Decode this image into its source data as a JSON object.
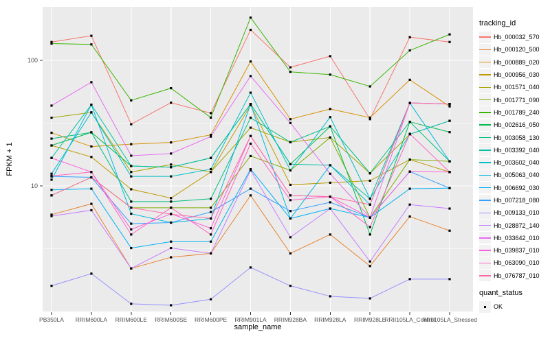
{
  "chart_data": {
    "type": "line",
    "title": "",
    "xlabel": "sample_name",
    "ylabel": "FPKM + 1",
    "y_scale": "log10",
    "ylim": [
      1,
      280
    ],
    "y_ticks": [
      10,
      100
    ],
    "y_minor_ticks": [
      3.162,
      31.62
    ],
    "grid": true,
    "legend_position": "right",
    "legend_title": "tracking_id",
    "quant_legend": {
      "title": "quant_status",
      "items": [
        "OK"
      ]
    },
    "panel_background": "#EBEBEB",
    "grid_color": "#FFFFFF",
    "tick_label_color": "#4D4D4D",
    "point_color": "#000000",
    "point_shape": "square",
    "categories": [
      "PB350LA",
      "RRIM600LA",
      "RRIM600LE",
      "RRIM600SE",
      "RRIM600PE",
      "RRIM901LA",
      "RRIM928BA",
      "RRIM928LA",
      "RRIM928LE",
      "RRII105LA_Control",
      "RRII105LA_Stressed"
    ],
    "series": [
      {
        "name": "Hb_000032_570",
        "color": "#F8766D",
        "values": [
          140,
          157,
          31,
          46,
          38,
          175,
          88,
          108,
          34,
          153,
          140
        ]
      },
      {
        "name": "Hb_000120_500",
        "color": "#EA8331",
        "values": [
          5.9,
          7.2,
          2.2,
          2.7,
          2.9,
          8.4,
          2.9,
          4.1,
          2.3,
          5.7,
          4.4
        ]
      },
      {
        "name": "Hb_000889_020",
        "color": "#D89000",
        "values": [
          26.5,
          20.6,
          21.5,
          22.2,
          25.5,
          98,
          34,
          41,
          35,
          70,
          43
        ]
      },
      {
        "name": "Hb_000956_030",
        "color": "#C09B00",
        "values": [
          21,
          17,
          9.4,
          8.0,
          12.9,
          44,
          10.2,
          10.6,
          11,
          16.2,
          12.9
        ]
      },
      {
        "name": "Hb_001571_040",
        "color": "#A3A500",
        "values": [
          34.9,
          38.5,
          12.9,
          14.8,
          12.9,
          29.1,
          22.3,
          24.3,
          12.6,
          25.8,
          33
        ]
      },
      {
        "name": "Hb_001771_090",
        "color": "#7CAE00",
        "values": [
          8.4,
          11.7,
          6.7,
          6.7,
          6.7,
          17.3,
          13.3,
          24.3,
          5.6,
          16.2,
          15.7
        ]
      },
      {
        "name": "Hb_001789_240",
        "color": "#39B600",
        "values": [
          136,
          134,
          48,
          60,
          35,
          219,
          81,
          77,
          62,
          120,
          161
        ]
      },
      {
        "name": "Hb_002616_050",
        "color": "#00BB4E",
        "values": [
          21.0,
          26.7,
          14.4,
          14.1,
          16.7,
          44.9,
          14.9,
          29.8,
          4.1,
          32.4,
          26.8
        ]
      },
      {
        "name": "Hb_003058_130",
        "color": "#00BF7D",
        "values": [
          23.8,
          26.7,
          7.5,
          7.5,
          7.9,
          34.9,
          22.3,
          29.8,
          12.6,
          32.4,
          15.7
        ]
      },
      {
        "name": "Hb_003392_040",
        "color": "#00C1A3",
        "values": [
          16.7,
          44.3,
          14.4,
          14.1,
          16.7,
          44.9,
          14.9,
          14.6,
          7.9,
          45.8,
          44.9
        ]
      },
      {
        "name": "Hb_003602_040",
        "color": "#00BFC4",
        "values": [
          12.5,
          38.5,
          11.9,
          11.9,
          13.6,
          55.3,
          13.3,
          35.3,
          7.9,
          25.8,
          33
        ]
      },
      {
        "name": "Hb_005063_040",
        "color": "#00BAE0",
        "values": [
          11.2,
          44.3,
          6.0,
          5.1,
          5.5,
          44.9,
          5.5,
          14.6,
          7.1,
          45.8,
          15.7
        ]
      },
      {
        "name": "Hb_006692_030",
        "color": "#00B0F6",
        "values": [
          9.3,
          9.5,
          3.2,
          3.6,
          3.6,
          13.6,
          5.5,
          6.6,
          5.6,
          9.5,
          9.6
        ]
      },
      {
        "name": "Hb_007218_080",
        "color": "#35A2FF",
        "values": [
          11.9,
          11.7,
          5.0,
          5.1,
          6.2,
          9.5,
          6.3,
          7.4,
          5.6,
          13.0,
          9.6
        ]
      },
      {
        "name": "Hb_009133_010",
        "color": "#9590FF",
        "values": [
          1.6,
          2.0,
          1.15,
          1.12,
          1.25,
          2.24,
          1.6,
          1.32,
          1.27,
          1.81,
          1.81
        ]
      },
      {
        "name": "Hb_028872_140",
        "color": "#C77CFF",
        "values": [
          5.75,
          6.4,
          2.2,
          3.2,
          2.9,
          13.3,
          3.9,
          6.6,
          2.5,
          7.1,
          6.6
        ]
      },
      {
        "name": "Hb_033642_010",
        "color": "#E76BF3",
        "values": [
          43.6,
          67,
          17.4,
          18.1,
          24.7,
          75,
          31.7,
          12.5,
          5.6,
          45.8,
          44.9
        ]
      },
      {
        "name": "Hb_039837_010",
        "color": "#FA62DB",
        "values": [
          16.7,
          12.9,
          4.5,
          6.0,
          4.6,
          25.0,
          8.4,
          8.2,
          5.6,
          13.0,
          12.9
        ]
      },
      {
        "name": "Hb_063090_010",
        "color": "#FF61C3",
        "values": [
          12.0,
          12.9,
          4.1,
          6.7,
          4.1,
          21.7,
          7.7,
          8.2,
          4.7,
          26,
          12.9
        ]
      },
      {
        "name": "Hb_076787_010",
        "color": "#FF67A4",
        "values": [
          8.4,
          11.7,
          6.7,
          5.95,
          5.5,
          25.0,
          8.4,
          8.2,
          7.1,
          45.8,
          44.9
        ]
      }
    ]
  }
}
